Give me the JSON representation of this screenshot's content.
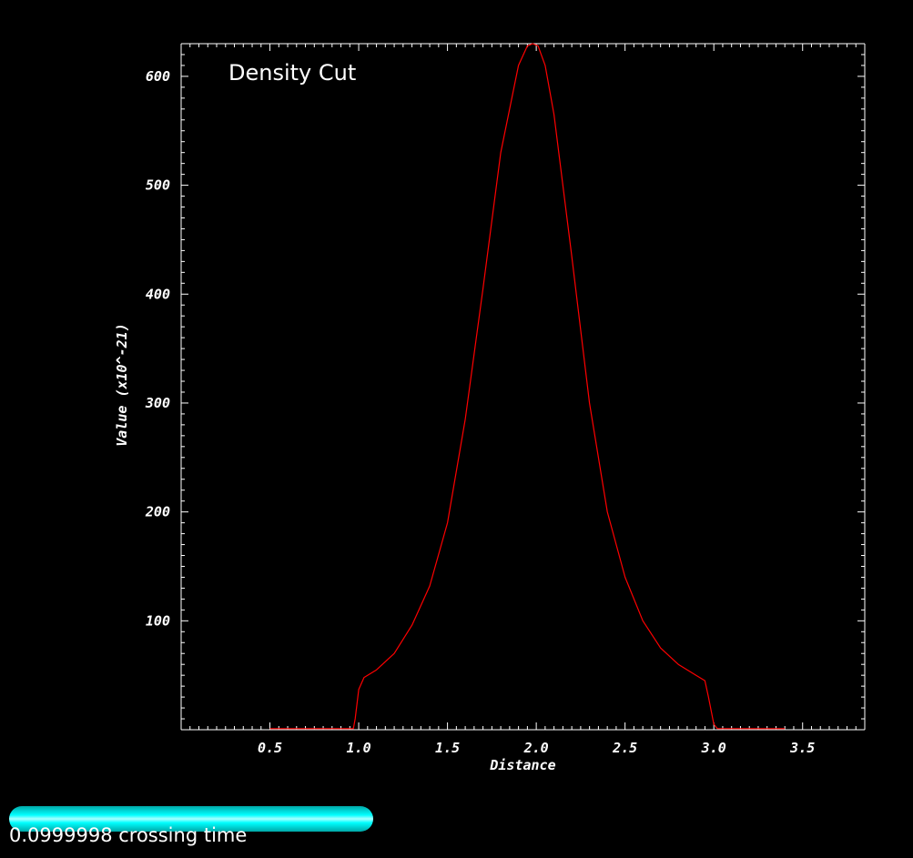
{
  "chart_data": {
    "type": "line",
    "title": "Density Cut",
    "xlabel": "Distance",
    "ylabel": "Value (x10^-21)",
    "xlim": [
      0.0,
      3.85
    ],
    "ylim": [
      0,
      630
    ],
    "xticks": [
      0.5,
      1.0,
      1.5,
      2.0,
      2.5,
      3.0,
      3.5
    ],
    "xtick_labels": [
      "0.5",
      "1.0",
      "1.5",
      "2.0",
      "2.5",
      "3.0",
      "3.5"
    ],
    "yticks": [
      100,
      200,
      300,
      400,
      500,
      600
    ],
    "ytick_labels": [
      "100",
      "200",
      "300",
      "400",
      "500",
      "600"
    ],
    "grid": false,
    "line_color": "#ff0000",
    "series": [
      {
        "x": [
          0.5,
          0.97,
          0.98,
          1.0,
          1.03,
          1.1,
          1.2,
          1.3,
          1.4,
          1.5,
          1.6,
          1.7,
          1.8,
          1.9,
          1.95,
          1.98,
          2.01,
          2.05,
          2.1,
          2.2,
          2.3,
          2.4,
          2.5,
          2.6,
          2.7,
          2.8,
          2.9,
          2.95,
          2.97,
          3.0,
          3.02,
          3.4
        ],
        "y": [
          1,
          1,
          10,
          37,
          48,
          55,
          70,
          96,
          132,
          190,
          285,
          405,
          530,
          610,
          628,
          630,
          628,
          610,
          565,
          435,
          300,
          200,
          140,
          100,
          75,
          60,
          50,
          45,
          30,
          5,
          1,
          1
        ]
      }
    ]
  },
  "time_slider": {
    "label": "0.0999998 crossing time",
    "fill_fraction": 1.0,
    "color": "#00ffff"
  }
}
